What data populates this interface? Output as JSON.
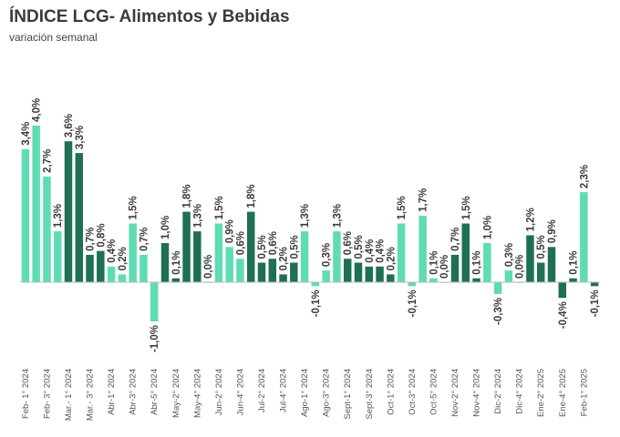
{
  "chart_data": {
    "type": "bar",
    "title": "ÍNDICE LCG- Alimentos y Bebidas",
    "subtitle": "variación semanal",
    "xlabel": "",
    "ylabel": "",
    "ylim": [
      -1.0,
      4.0
    ],
    "unit": "%",
    "grid": false,
    "legend": "none",
    "categories": [
      "Feb- 1° 2024",
      "",
      "Feb- 3° 2024",
      "",
      "Mar.- 1° 2024",
      "",
      "Mar.- 3° 2024",
      "",
      "Abr-1° 2024",
      "",
      "Abr-3° 2024",
      "",
      "Abr-5° 2024",
      "",
      "May-2° 2024",
      "",
      "May-4° 2024",
      "",
      "Jun-2° 2024",
      "",
      "Jun-4° 2024",
      "",
      "Jul-2° 2024",
      "",
      "Jul-4° 2024",
      "",
      "Ago-1° 2024",
      "",
      "Ago-3° 2024",
      "",
      "Sept-1° 2024",
      "",
      "Sept-3° 2024",
      "",
      "Oct-1° 2024",
      "",
      "Oct-3° 2024",
      "",
      "Oct-5° 2024",
      "",
      "Nov-2° 2024",
      "",
      "Nov-4° 2024",
      "",
      "Dic-2° 2024",
      "",
      "Dic-4° 2024",
      "",
      "Ene-2° 2025",
      "",
      "Ene-4° 2025",
      "",
      "Feb-1° 2025",
      ""
    ],
    "values": [
      3.4,
      4.0,
      2.7,
      1.3,
      3.6,
      3.3,
      0.7,
      0.8,
      0.4,
      0.2,
      1.5,
      0.7,
      -1.0,
      1.0,
      0.1,
      1.8,
      1.3,
      0.0,
      1.5,
      0.9,
      0.6,
      1.8,
      0.5,
      0.6,
      0.2,
      0.5,
      1.3,
      -0.1,
      0.3,
      1.3,
      0.6,
      0.5,
      0.4,
      0.4,
      0.2,
      1.5,
      -0.1,
      1.7,
      0.1,
      0.0,
      0.7,
      1.5,
      0.1,
      1.0,
      -0.3,
      0.3,
      0.0,
      1.2,
      0.5,
      0.9,
      -0.4,
      0.1,
      2.3,
      -0.1
    ],
    "labels": [
      "3,4%",
      "4,0%",
      "2,7%",
      "1,3%",
      "3,6%",
      "3,3%",
      "0,7%",
      "0,8%",
      "0,4%",
      "0,2%",
      "1,5%",
      "0,7%",
      "-1,0%",
      "1,0%",
      "0,1%",
      "1,8%",
      "1,3%",
      "0,0%",
      "1,5%",
      "0,9%",
      "0,6%",
      "1,8%",
      "0,5%",
      "0,6%",
      "0,2%",
      "0,5%",
      "1,3%",
      "-0,1%",
      "0,3%",
      "1,3%",
      "0,6%",
      "0,5%",
      "0,4%",
      "0,4%",
      "0,2%",
      "1,5%",
      "-0,1%",
      "1,7%",
      "0,1%",
      "0,0%",
      "0,7%",
      "1,5%",
      "0,1%",
      "1,0%",
      "-0,3%",
      "0,3%",
      "0,0%",
      "1,2%",
      "0,5%",
      "0,9%",
      "-0,4%",
      "0,1%",
      "2,3%",
      "-0,1%"
    ],
    "colors": [
      "light",
      "light",
      "light",
      "light",
      "dark",
      "dark",
      "dark",
      "dark",
      "light",
      "light",
      "light",
      "light",
      "light",
      "dark",
      "dark",
      "dark",
      "dark",
      "light",
      "light",
      "light",
      "light",
      "dark",
      "dark",
      "dark",
      "dark",
      "dark",
      "light",
      "light",
      "light",
      "light",
      "dark",
      "dark",
      "dark",
      "dark",
      "dark",
      "light",
      "light",
      "light",
      "light",
      "light",
      "dark",
      "dark",
      "dark",
      "light",
      "light",
      "light",
      "light",
      "dark",
      "dark",
      "dark",
      "dark",
      "dark",
      "light",
      "dark"
    ],
    "palette": {
      "light": "#5fdcb4",
      "dark": "#1f6f55",
      "text": "#3a3a3a",
      "axis": "#bbbbbb"
    }
  }
}
